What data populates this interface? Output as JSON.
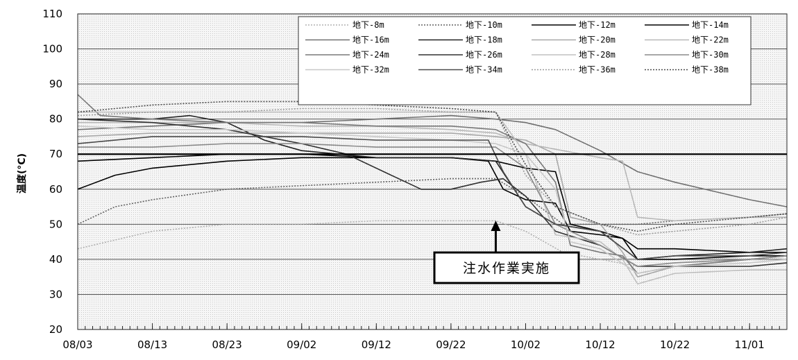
{
  "chart_data": {
    "type": "line",
    "title": "",
    "xlabel": "",
    "ylabel": "温度(°C)",
    "ylim": [
      20,
      110
    ],
    "yticks": [
      20,
      30,
      40,
      50,
      60,
      70,
      80,
      90,
      100,
      110
    ],
    "xlim": [
      "08/03",
      "11/06"
    ],
    "xticks": [
      "08/03",
      "08/13",
      "08/23",
      "09/02",
      "09/12",
      "09/22",
      "10/02",
      "10/12",
      "10/22",
      "11/01"
    ],
    "grid": true,
    "legend_position": "top-right",
    "reference_line": {
      "y": 70
    },
    "annotation": {
      "text": "注水作業実施",
      "x": "09/28"
    },
    "series": [
      {
        "name": "地下-8m",
        "color": "#b0b0b0",
        "dash": "dotted",
        "points": [
          [
            "08/03",
            43
          ],
          [
            "08/13",
            48
          ],
          [
            "08/23",
            50
          ],
          [
            "09/02",
            50
          ],
          [
            "09/12",
            51
          ],
          [
            "09/22",
            51
          ],
          [
            "09/28",
            51
          ],
          [
            "10/02",
            48
          ],
          [
            "10/07",
            42
          ],
          [
            "10/12",
            40
          ],
          [
            "10/17",
            38
          ],
          [
            "10/22",
            39
          ],
          [
            "11/01",
            40
          ],
          [
            "11/06",
            41
          ]
        ]
      },
      {
        "name": "地下-10m",
        "color": "#606060",
        "dash": "dotted",
        "points": [
          [
            "08/03",
            50
          ],
          [
            "08/08",
            55
          ],
          [
            "08/13",
            57
          ],
          [
            "08/23",
            60
          ],
          [
            "09/02",
            61
          ],
          [
            "09/12",
            62
          ],
          [
            "09/22",
            63
          ],
          [
            "09/28",
            63
          ],
          [
            "10/02",
            58
          ],
          [
            "10/07",
            50
          ],
          [
            "10/12",
            50
          ],
          [
            "10/17",
            50
          ],
          [
            "10/22",
            51
          ],
          [
            "11/01",
            52
          ],
          [
            "11/06",
            53
          ]
        ]
      },
      {
        "name": "地下-12m",
        "color": "#000000",
        "dash": "solid",
        "points": [
          [
            "08/03",
            60
          ],
          [
            "08/08",
            64
          ],
          [
            "08/13",
            66
          ],
          [
            "08/23",
            68
          ],
          [
            "09/02",
            69
          ],
          [
            "09/12",
            69
          ],
          [
            "09/22",
            69
          ],
          [
            "09/28",
            68
          ],
          [
            "10/02",
            66
          ],
          [
            "10/06",
            65
          ],
          [
            "10/08",
            50
          ],
          [
            "10/12",
            48
          ],
          [
            "10/15",
            46
          ],
          [
            "10/17",
            40
          ],
          [
            "10/22",
            40
          ],
          [
            "11/01",
            41
          ],
          [
            "11/06",
            41
          ]
        ]
      },
      {
        "name": "地下-14m",
        "color": "#000000",
        "dash": "solid",
        "points": [
          [
            "08/03",
            68
          ],
          [
            "08/13",
            69
          ],
          [
            "08/23",
            70
          ],
          [
            "09/02",
            70
          ],
          [
            "09/12",
            69
          ],
          [
            "09/22",
            69
          ],
          [
            "09/27",
            68
          ],
          [
            "09/29",
            60
          ],
          [
            "10/02",
            57
          ],
          [
            "10/06",
            56
          ],
          [
            "10/08",
            48
          ],
          [
            "10/12",
            47
          ],
          [
            "10/15",
            46
          ],
          [
            "10/17",
            43
          ],
          [
            "10/22",
            43
          ],
          [
            "11/01",
            42
          ],
          [
            "11/06",
            42
          ]
        ]
      },
      {
        "name": "地下-16m",
        "color": "#707070",
        "dash": "solid",
        "points": [
          [
            "08/03",
            77
          ],
          [
            "08/13",
            78
          ],
          [
            "08/23",
            79
          ],
          [
            "09/02",
            79
          ],
          [
            "09/12",
            80
          ],
          [
            "09/22",
            81
          ],
          [
            "09/28",
            80
          ],
          [
            "10/02",
            79
          ],
          [
            "10/06",
            77
          ],
          [
            "10/12",
            71
          ],
          [
            "10/17",
            65
          ],
          [
            "10/22",
            62
          ],
          [
            "11/01",
            57
          ],
          [
            "11/06",
            55
          ]
        ]
      },
      {
        "name": "地下-18m",
        "color": "#222222",
        "dash": "solid",
        "points": [
          [
            "08/03",
            80
          ],
          [
            "08/13",
            80
          ],
          [
            "08/18",
            81
          ],
          [
            "08/23",
            79
          ],
          [
            "08/28",
            74
          ],
          [
            "09/02",
            71
          ],
          [
            "09/12",
            69
          ],
          [
            "09/22",
            69
          ],
          [
            "09/28",
            68
          ],
          [
            "10/02",
            55
          ],
          [
            "10/06",
            50
          ],
          [
            "10/12",
            48
          ],
          [
            "10/17",
            40
          ],
          [
            "10/22",
            41
          ],
          [
            "11/01",
            42
          ],
          [
            "11/06",
            43
          ]
        ]
      },
      {
        "name": "地下-20m",
        "color": "#a8a8a8",
        "dash": "solid",
        "points": [
          [
            "08/03",
            75
          ],
          [
            "08/13",
            76
          ],
          [
            "08/23",
            76
          ],
          [
            "09/02",
            76
          ],
          [
            "09/12",
            76
          ],
          [
            "09/22",
            76
          ],
          [
            "09/28",
            75
          ],
          [
            "10/02",
            74
          ],
          [
            "10/06",
            70
          ],
          [
            "10/08",
            52
          ],
          [
            "10/12",
            50
          ],
          [
            "10/15",
            42
          ],
          [
            "10/17",
            35
          ],
          [
            "10/22",
            38
          ],
          [
            "11/01",
            40
          ],
          [
            "11/06",
            41
          ]
        ]
      },
      {
        "name": "地下-22m",
        "color": "#b8b8b8",
        "dash": "solid",
        "points": [
          [
            "08/03",
            79
          ],
          [
            "08/13",
            79
          ],
          [
            "08/23",
            79
          ],
          [
            "09/02",
            78
          ],
          [
            "09/12",
            78
          ],
          [
            "09/22",
            77
          ],
          [
            "09/28",
            76
          ],
          [
            "10/02",
            73
          ],
          [
            "10/07",
            71
          ],
          [
            "10/12",
            69
          ],
          [
            "10/15",
            68
          ],
          [
            "10/17",
            52
          ],
          [
            "10/22",
            51
          ],
          [
            "11/01",
            52
          ],
          [
            "11/06",
            52
          ]
        ]
      },
      {
        "name": "地下-24m",
        "color": "#787878",
        "dash": "solid",
        "points": [
          [
            "08/03",
            87
          ],
          [
            "08/06",
            81
          ],
          [
            "08/13",
            80
          ],
          [
            "08/23",
            79
          ],
          [
            "09/02",
            79
          ],
          [
            "09/12",
            78
          ],
          [
            "09/22",
            78
          ],
          [
            "09/28",
            77
          ],
          [
            "10/02",
            73
          ],
          [
            "10/06",
            62
          ],
          [
            "10/08",
            44
          ],
          [
            "10/12",
            42
          ],
          [
            "10/15",
            41
          ],
          [
            "10/17",
            36
          ],
          [
            "10/22",
            38
          ],
          [
            "11/01",
            40
          ],
          [
            "11/06",
            41
          ]
        ]
      },
      {
        "name": "地下-26m",
        "color": "#303030",
        "dash": "solid",
        "points": [
          [
            "08/03",
            80
          ],
          [
            "08/13",
            79
          ],
          [
            "08/23",
            77
          ],
          [
            "09/02",
            73
          ],
          [
            "09/08",
            70
          ],
          [
            "09/14",
            64
          ],
          [
            "09/18",
            60
          ],
          [
            "09/22",
            60
          ],
          [
            "09/26",
            62
          ],
          [
            "09/29",
            63
          ],
          [
            "10/02",
            58
          ],
          [
            "10/06",
            48
          ],
          [
            "10/12",
            44
          ],
          [
            "10/17",
            38
          ],
          [
            "10/22",
            38
          ],
          [
            "11/01",
            38
          ],
          [
            "11/06",
            39
          ]
        ]
      },
      {
        "name": "地下-28m",
        "color": "#c0c0c0",
        "dash": "solid",
        "points": [
          [
            "08/03",
            82
          ],
          [
            "08/13",
            82
          ],
          [
            "08/23",
            82
          ],
          [
            "09/02",
            82
          ],
          [
            "09/12",
            82
          ],
          [
            "09/22",
            82
          ],
          [
            "09/28",
            82
          ],
          [
            "10/02",
            70
          ],
          [
            "10/06",
            47
          ],
          [
            "10/12",
            45
          ],
          [
            "10/15",
            40
          ],
          [
            "10/17",
            33
          ],
          [
            "10/22",
            36
          ],
          [
            "11/01",
            37
          ],
          [
            "11/06",
            37
          ]
        ]
      },
      {
        "name": "地下-30m",
        "color": "#8a8a8a",
        "dash": "solid",
        "points": [
          [
            "08/03",
            72
          ],
          [
            "08/13",
            72
          ],
          [
            "08/23",
            73
          ],
          [
            "09/02",
            73
          ],
          [
            "09/12",
            72
          ],
          [
            "09/22",
            72
          ],
          [
            "09/28",
            72
          ],
          [
            "10/02",
            66
          ],
          [
            "10/06",
            50
          ],
          [
            "10/12",
            44
          ],
          [
            "10/17",
            38
          ],
          [
            "10/22",
            39
          ],
          [
            "11/01",
            40
          ],
          [
            "11/06",
            41
          ]
        ]
      },
      {
        "name": "地下-32m",
        "color": "#c8c8c8",
        "dash": "solid",
        "points": [
          [
            "08/03",
            78
          ],
          [
            "08/13",
            77
          ],
          [
            "08/23",
            77
          ],
          [
            "09/02",
            76
          ],
          [
            "09/12",
            75
          ],
          [
            "09/22",
            74
          ],
          [
            "09/28",
            73
          ],
          [
            "10/02",
            70
          ],
          [
            "10/06",
            60
          ],
          [
            "10/08",
            45
          ],
          [
            "10/12",
            43
          ],
          [
            "10/17",
            36
          ],
          [
            "10/22",
            38
          ],
          [
            "11/01",
            39
          ],
          [
            "11/06",
            40
          ]
        ]
      },
      {
        "name": "地下-34m",
        "color": "#4a4a4a",
        "dash": "solid",
        "points": [
          [
            "08/03",
            73
          ],
          [
            "08/13",
            75
          ],
          [
            "08/23",
            75
          ],
          [
            "09/02",
            75
          ],
          [
            "09/12",
            74
          ],
          [
            "09/22",
            74
          ],
          [
            "09/27",
            74
          ],
          [
            "09/29",
            65
          ],
          [
            "10/02",
            55
          ],
          [
            "10/06",
            50
          ],
          [
            "10/12",
            48
          ],
          [
            "10/17",
            40
          ],
          [
            "10/22",
            41
          ],
          [
            "11/01",
            41
          ],
          [
            "11/06",
            42
          ]
        ]
      },
      {
        "name": "地下-36m",
        "color": "#9a9a9a",
        "dash": "dotted",
        "points": [
          [
            "08/03",
            81
          ],
          [
            "08/13",
            82
          ],
          [
            "08/23",
            82
          ],
          [
            "09/02",
            83
          ],
          [
            "09/12",
            83
          ],
          [
            "09/22",
            82
          ],
          [
            "09/28",
            82
          ],
          [
            "10/02",
            64
          ],
          [
            "10/06",
            55
          ],
          [
            "10/12",
            50
          ],
          [
            "10/17",
            47
          ],
          [
            "10/22",
            48
          ],
          [
            "11/01",
            50
          ],
          [
            "11/06",
            52
          ]
        ]
      },
      {
        "name": "地下-38m",
        "color": "#4a4a4a",
        "dash": "dotted",
        "points": [
          [
            "08/03",
            82
          ],
          [
            "08/13",
            84
          ],
          [
            "08/23",
            85
          ],
          [
            "09/02",
            85
          ],
          [
            "09/12",
            84
          ],
          [
            "09/22",
            83
          ],
          [
            "09/28",
            82
          ],
          [
            "10/02",
            67
          ],
          [
            "10/06",
            55
          ],
          [
            "10/12",
            50
          ],
          [
            "10/17",
            48
          ],
          [
            "10/22",
            50
          ],
          [
            "11/01",
            52
          ],
          [
            "11/06",
            53
          ]
        ]
      }
    ]
  }
}
